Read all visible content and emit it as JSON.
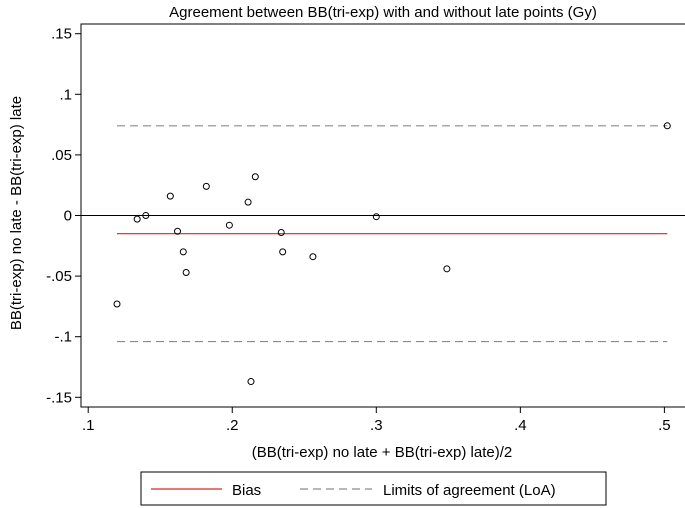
{
  "chart_data": {
    "type": "scatter",
    "title": "Agreement between BB(tri-exp) with and without late points (Gy)",
    "xlabel": "(BB(tri-exp) no late + BB(tri-exp) late)/2",
    "ylabel": "BB(tri-exp) no late - BB(tri-exp) late",
    "xlim": [
      0.095,
      0.515
    ],
    "ylim": [
      -0.158,
      0.158
    ],
    "x_ticks": [
      0.1,
      0.2,
      0.3,
      0.4,
      0.5
    ],
    "x_tick_labels": [
      ".1",
      ".2",
      ".3",
      ".4",
      ".5"
    ],
    "y_ticks": [
      0.15,
      0.1,
      0.05,
      0,
      -0.05,
      -0.1,
      -0.15
    ],
    "y_tick_labels": [
      ".15",
      ".1",
      ".05",
      "0",
      "-.05",
      "-.1",
      "-.15"
    ],
    "grid": false,
    "zero_line": 0,
    "bias": -0.015,
    "limits_of_agreement": [
      -0.104,
      0.074
    ],
    "line_x_range": [
      0.12,
      0.502
    ],
    "points": [
      {
        "x": 0.12,
        "y": -0.073
      },
      {
        "x": 0.134,
        "y": -0.003
      },
      {
        "x": 0.14,
        "y": 0.0
      },
      {
        "x": 0.157,
        "y": 0.016
      },
      {
        "x": 0.162,
        "y": -0.013
      },
      {
        "x": 0.166,
        "y": -0.03
      },
      {
        "x": 0.168,
        "y": -0.047
      },
      {
        "x": 0.182,
        "y": 0.024
      },
      {
        "x": 0.198,
        "y": -0.008
      },
      {
        "x": 0.211,
        "y": 0.011
      },
      {
        "x": 0.213,
        "y": -0.137
      },
      {
        "x": 0.216,
        "y": 0.032
      },
      {
        "x": 0.234,
        "y": -0.014
      },
      {
        "x": 0.235,
        "y": -0.03
      },
      {
        "x": 0.256,
        "y": -0.034
      },
      {
        "x": 0.3,
        "y": -0.001
      },
      {
        "x": 0.349,
        "y": -0.044
      },
      {
        "x": 0.502,
        "y": 0.074
      }
    ],
    "colors": {
      "bias": "#d62728",
      "loa": "#8c8c8c",
      "points": "#000000",
      "zero": "#000000"
    },
    "legend": {
      "placement": "bottom",
      "items": [
        {
          "label": "Bias",
          "style": "solid",
          "color": "#d62728"
        },
        {
          "label": "Limits of agreement (LoA)",
          "style": "dashed",
          "color": "#8c8c8c"
        }
      ]
    }
  }
}
